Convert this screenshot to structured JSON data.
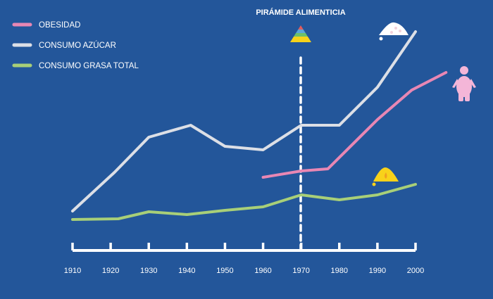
{
  "chart_data": {
    "type": "line",
    "title": "PIRÁMIDE ALIMENTICIA",
    "xlabel": "",
    "ylabel": "",
    "x_ticks": [
      1910,
      1920,
      1930,
      1940,
      1950,
      1960,
      1970,
      1980,
      1990,
      2000
    ],
    "xlim": [
      1910,
      2000
    ],
    "ylim": [
      0,
      300
    ],
    "grid": false,
    "legend_position": "top-left",
    "annotation": {
      "x": 1970,
      "label": "PIRÁMIDE ALIMENTICIA",
      "icon": "food-pyramid-icon"
    },
    "series": [
      {
        "name": "OBESIDAD",
        "color": "#e887b4",
        "icon": "obese-person-icon",
        "x": [
          1960,
          1970,
          1977,
          1990,
          1999,
          2008
        ],
        "values": [
          88,
          97,
          100,
          170,
          212,
          237
        ]
      },
      {
        "name": "CONSUMO AZÚCAR",
        "color": "#dcdfe6",
        "icon": "sugar-pile-icon",
        "x": [
          1910,
          1921,
          1930,
          1941,
          1950,
          1960,
          1970,
          1980,
          1990,
          2000
        ],
        "values": [
          40,
          95,
          145,
          162,
          132,
          127,
          162,
          162,
          216,
          295
        ]
      },
      {
        "name": "CONSUMO GRASA TOTAL",
        "color": "#a8cf78",
        "icon": "fat-drop-icon",
        "x": [
          1910,
          1922,
          1930,
          1940,
          1950,
          1960,
          1970,
          1980,
          1990,
          2000
        ],
        "values": [
          28,
          29,
          39,
          35,
          41,
          46,
          63,
          56,
          63,
          78
        ]
      }
    ]
  },
  "colors": {
    "background": "#23569a",
    "axis": "#ffffff"
  }
}
